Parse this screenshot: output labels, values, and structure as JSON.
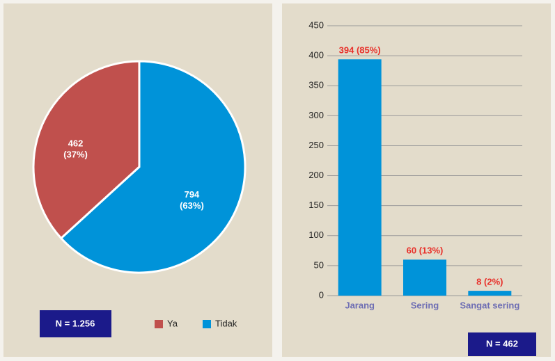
{
  "chart_data": [
    {
      "type": "pie",
      "categories": [
        "Ya",
        "Tidak"
      ],
      "values": [
        462,
        794
      ],
      "value_labels": [
        "462 (37%)",
        "794 (63%)"
      ],
      "colors": [
        "#c0504d",
        "#0093d9"
      ],
      "annotation": "N = 1.256",
      "legend": "bottom"
    },
    {
      "type": "bar",
      "categories": [
        "Jarang",
        "Sering",
        "Sangat sering"
      ],
      "values": [
        394,
        60,
        8
      ],
      "value_labels": [
        "394 (85%)",
        "60 (13%)",
        "8 (2%)"
      ],
      "color": "#0093d9",
      "ylim": [
        0,
        450
      ],
      "yticks": [
        0,
        50,
        100,
        150,
        200,
        250,
        300,
        350,
        400,
        450
      ],
      "grid": true,
      "annotation": "N = 462"
    }
  ]
}
